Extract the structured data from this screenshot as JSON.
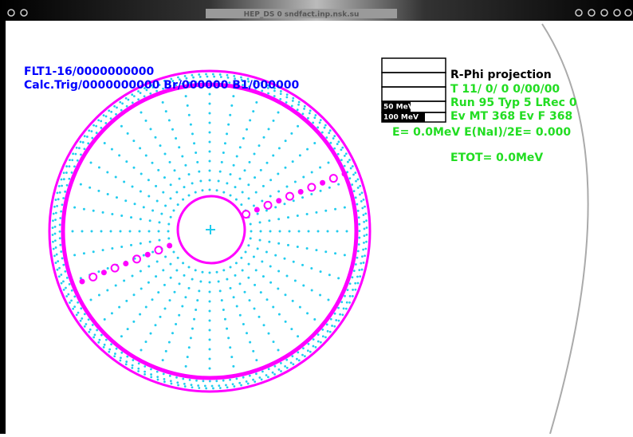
{
  "window": {
    "title": "HEP_DS 0 sndfact.inp.nsk.su"
  },
  "trigger": {
    "line1": "FLT1-16/0000000000",
    "line2": "Calc.Trig/0000000000 Br/000000 B1/000000"
  },
  "legend": {
    "scale1": "50 MeV",
    "scale2": "100 MeV"
  },
  "info": {
    "projection": "R-Phi projection",
    "time": "T 11/ 0/ 0 0/00/00",
    "run": "Run 95 Typ 5 LRec  0",
    "events": "Ev MT   368  Ev F  368",
    "energy": "E=  0.0MeV  E(NaI)/2E= 0.000",
    "etot": "ETOT=  0.0MeV"
  }
}
